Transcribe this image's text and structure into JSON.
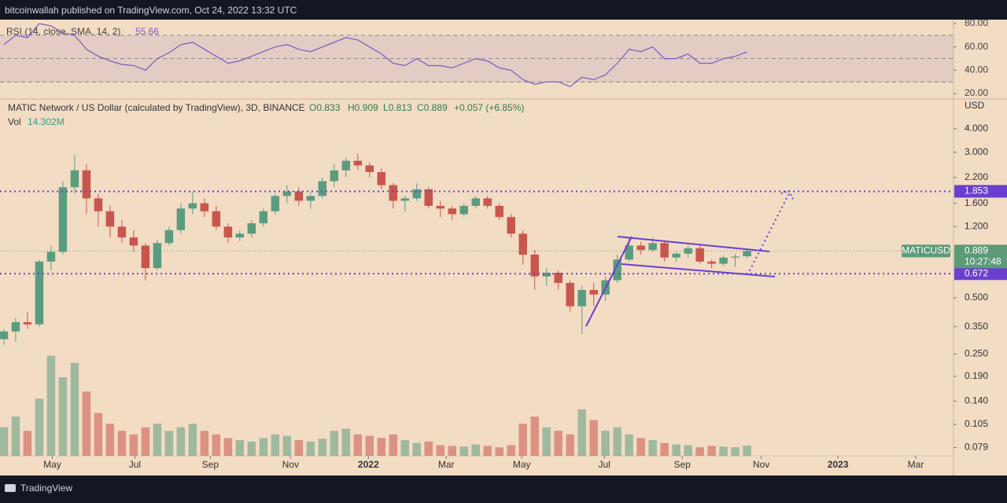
{
  "header": "bitcoinwallah published on TradingView.com, Oct 24, 2022 13:32 UTC",
  "footer": "TradingView",
  "chart_data": {
    "type": "candlestick",
    "title": "MATIC Network / US Dollar (calculated by TradingView), 3D, BINANCE",
    "ohlc_legend": [
      "O0.833",
      "H0.909",
      "L0.813",
      "C0.889",
      "+0.057 (+6.85%)"
    ],
    "volume_title": "Vol",
    "volume_label": "14.302M",
    "currency": "USD",
    "symbol": "MATICUSD",
    "countdown": "10:27:48",
    "log_scale": true,
    "up_color": "#5a9c80",
    "down_color": "#c9564c",
    "candles": [
      [
        0.3,
        0.34,
        0.28,
        0.33
      ],
      [
        0.33,
        0.39,
        0.29,
        0.37
      ],
      [
        0.37,
        0.42,
        0.34,
        0.36
      ],
      [
        0.36,
        0.8,
        0.35,
        0.78
      ],
      [
        0.78,
        0.95,
        0.7,
        0.88
      ],
      [
        0.88,
        2.1,
        0.85,
        1.95
      ],
      [
        1.95,
        2.9,
        1.8,
        2.4
      ],
      [
        2.4,
        2.6,
        1.4,
        1.7
      ],
      [
        1.7,
        1.8,
        1.2,
        1.45
      ],
      [
        1.45,
        1.55,
        1.05,
        1.2
      ],
      [
        1.2,
        1.3,
        0.98,
        1.05
      ],
      [
        1.05,
        1.15,
        0.88,
        0.95
      ],
      [
        0.95,
        0.98,
        0.62,
        0.72
      ],
      [
        0.72,
        1.02,
        0.7,
        0.98
      ],
      [
        0.98,
        1.2,
        0.95,
        1.15
      ],
      [
        1.15,
        1.6,
        1.1,
        1.5
      ],
      [
        1.5,
        1.85,
        1.4,
        1.6
      ],
      [
        1.6,
        1.7,
        1.35,
        1.45
      ],
      [
        1.45,
        1.55,
        1.15,
        1.2
      ],
      [
        1.2,
        1.25,
        0.98,
        1.05
      ],
      [
        1.05,
        1.15,
        1.0,
        1.1
      ],
      [
        1.1,
        1.3,
        1.05,
        1.25
      ],
      [
        1.25,
        1.5,
        1.2,
        1.45
      ],
      [
        1.45,
        1.8,
        1.4,
        1.75
      ],
      [
        1.75,
        2.0,
        1.6,
        1.85
      ],
      [
        1.85,
        1.95,
        1.55,
        1.65
      ],
      [
        1.65,
        1.85,
        1.5,
        1.75
      ],
      [
        1.75,
        2.2,
        1.7,
        2.1
      ],
      [
        2.1,
        2.6,
        1.95,
        2.4
      ],
      [
        2.4,
        2.8,
        2.2,
        2.7
      ],
      [
        2.7,
        2.95,
        2.4,
        2.55
      ],
      [
        2.55,
        2.65,
        2.2,
        2.35
      ],
      [
        2.35,
        2.45,
        1.9,
        2.0
      ],
      [
        2.0,
        2.05,
        1.5,
        1.65
      ],
      [
        1.65,
        1.75,
        1.45,
        1.7
      ],
      [
        1.7,
        2.05,
        1.65,
        1.9
      ],
      [
        1.9,
        1.95,
        1.5,
        1.55
      ],
      [
        1.55,
        1.65,
        1.35,
        1.5
      ],
      [
        1.5,
        1.55,
        1.3,
        1.4
      ],
      [
        1.4,
        1.6,
        1.35,
        1.55
      ],
      [
        1.55,
        1.75,
        1.5,
        1.7
      ],
      [
        1.7,
        1.75,
        1.5,
        1.55
      ],
      [
        1.55,
        1.6,
        1.3,
        1.35
      ],
      [
        1.35,
        1.4,
        1.05,
        1.1
      ],
      [
        1.1,
        1.15,
        0.75,
        0.85
      ],
      [
        0.85,
        0.9,
        0.55,
        0.65
      ],
      [
        0.65,
        0.72,
        0.58,
        0.68
      ],
      [
        0.68,
        0.7,
        0.55,
        0.6
      ],
      [
        0.6,
        0.62,
        0.42,
        0.45
      ],
      [
        0.45,
        0.58,
        0.32,
        0.55
      ],
      [
        0.55,
        0.6,
        0.45,
        0.52
      ],
      [
        0.52,
        0.65,
        0.48,
        0.62
      ],
      [
        0.62,
        0.85,
        0.6,
        0.8
      ],
      [
        0.8,
        1.05,
        0.78,
        0.95
      ],
      [
        0.95,
        1.0,
        0.85,
        0.9
      ],
      [
        0.9,
        1.05,
        0.88,
        0.98
      ],
      [
        0.98,
        1.0,
        0.78,
        0.82
      ],
      [
        0.82,
        0.88,
        0.78,
        0.86
      ],
      [
        0.86,
        0.95,
        0.82,
        0.92
      ],
      [
        0.92,
        0.95,
        0.76,
        0.78
      ],
      [
        0.78,
        0.8,
        0.72,
        0.76
      ],
      [
        0.76,
        0.84,
        0.74,
        0.82
      ],
      [
        0.82,
        0.86,
        0.73,
        0.83
      ],
      [
        0.833,
        0.909,
        0.813,
        0.889
      ]
    ],
    "volume": [
      40,
      55,
      35,
      80,
      140,
      110,
      130,
      90,
      60,
      45,
      35,
      30,
      40,
      45,
      35,
      40,
      45,
      35,
      30,
      25,
      22,
      20,
      25,
      30,
      28,
      22,
      20,
      24,
      35,
      38,
      30,
      28,
      25,
      30,
      22,
      18,
      20,
      15,
      14,
      13,
      16,
      14,
      12,
      15,
      45,
      55,
      40,
      35,
      30,
      65,
      50,
      35,
      40,
      30,
      25,
      22,
      18,
      16,
      15,
      12,
      14,
      13,
      12,
      14.302
    ],
    "vlim": [
      0,
      220
    ],
    "rsi_title": "RSI (14, close, SMA, 14, 2)",
    "rsi_color": "#7e57c2",
    "rsi": [
      62,
      70,
      68,
      80,
      78,
      72,
      70,
      58,
      52,
      48,
      45,
      44,
      40,
      50,
      55,
      62,
      64,
      58,
      52,
      46,
      48,
      52,
      56,
      60,
      62,
      58,
      56,
      60,
      64,
      68,
      66,
      60,
      54,
      46,
      44,
      50,
      44,
      44,
      42,
      46,
      50,
      48,
      42,
      40,
      32,
      28,
      30,
      30,
      26,
      34,
      32,
      36,
      46,
      58,
      56,
      60,
      50,
      50,
      54,
      46,
      46,
      50,
      52,
      55.66
    ],
    "rsi_ylim": [
      16,
      83.4
    ],
    "rsi_bands": [
      70,
      50,
      30
    ],
    "rsi_ticks": [
      {
        "value": 80,
        "label": "80.00"
      },
      {
        "value": 60,
        "label": "60.00"
      },
      {
        "value": 40,
        "label": "40.00"
      },
      {
        "value": 20,
        "label": "20.00"
      }
    ],
    "ylim": [
      0.056,
      5.72
    ],
    "yticks": [
      {
        "value": 4,
        "label": "4.000"
      },
      {
        "value": 3,
        "label": "3.000"
      },
      {
        "value": 2.2,
        "label": "2.200"
      },
      {
        "value": 1.6,
        "label": "1.600"
      },
      {
        "value": 1.2,
        "label": "1.200"
      },
      {
        "value": 0.5,
        "label": "0.500"
      },
      {
        "value": 0.35,
        "label": "0.350"
      },
      {
        "value": 0.25,
        "label": "0.250"
      },
      {
        "value": 0.19,
        "label": "0.190"
      },
      {
        "value": 0.14,
        "label": "0.140"
      },
      {
        "value": 0.105,
        "label": "0.105"
      },
      {
        "value": 0.079,
        "label": "0.079"
      }
    ],
    "levels": [
      {
        "value": 1.853,
        "label": "1.853"
      },
      {
        "value": 0.672,
        "label": "0.672"
      }
    ],
    "last_price": {
      "value": 0.889,
      "label": "0.889"
    },
    "xlim": [
      -0.33,
      80.5
    ],
    "xticks": [
      {
        "value": 4.1,
        "label": "May"
      },
      {
        "value": 11.1,
        "label": "Jul"
      },
      {
        "value": 17.5,
        "label": "Sep"
      },
      {
        "value": 24.3,
        "label": "Nov"
      },
      {
        "value": 30.9,
        "label": "2022"
      },
      {
        "value": 37.5,
        "label": "Mar"
      },
      {
        "value": 43.9,
        "label": "May"
      },
      {
        "value": 50.9,
        "label": "Jul"
      },
      {
        "value": 57.5,
        "label": "Sep"
      },
      {
        "value": 64.2,
        "label": "Nov"
      },
      {
        "value": 70.7,
        "label": "2023"
      },
      {
        "value": 77.3,
        "label": "Mar"
      }
    ]
  }
}
